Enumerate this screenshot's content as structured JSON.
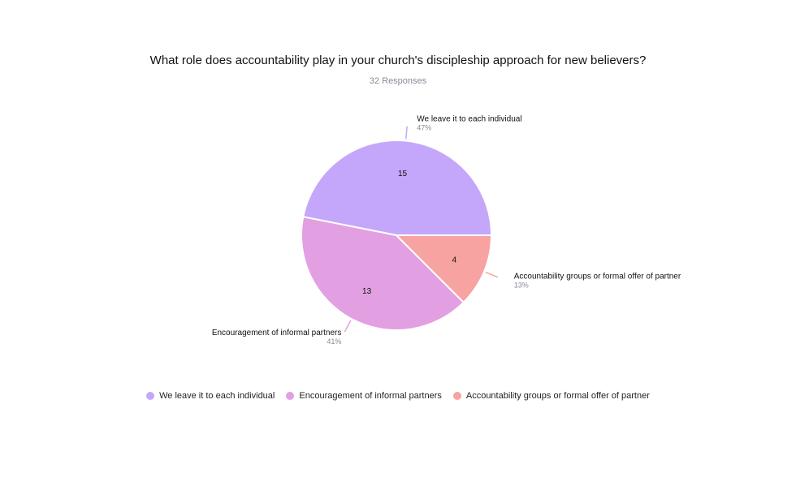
{
  "title": "What role does accountability play in your church's discipleship approach for new believers?",
  "subtitle": "32 Responses",
  "chart_data": {
    "type": "pie",
    "total": 32,
    "slices": [
      {
        "label": "We leave it to each individual",
        "value": 15,
        "percent": "47%",
        "color": "#c4a7fb"
      },
      {
        "label": "Encouragement of informal partners",
        "value": 13,
        "percent": "41%",
        "color": "#e29fe2"
      },
      {
        "label": "Accountability groups or formal offer of partner",
        "value": 4,
        "percent": "13%",
        "color": "#f7a3a1"
      }
    ],
    "legend_position": "bottom"
  }
}
